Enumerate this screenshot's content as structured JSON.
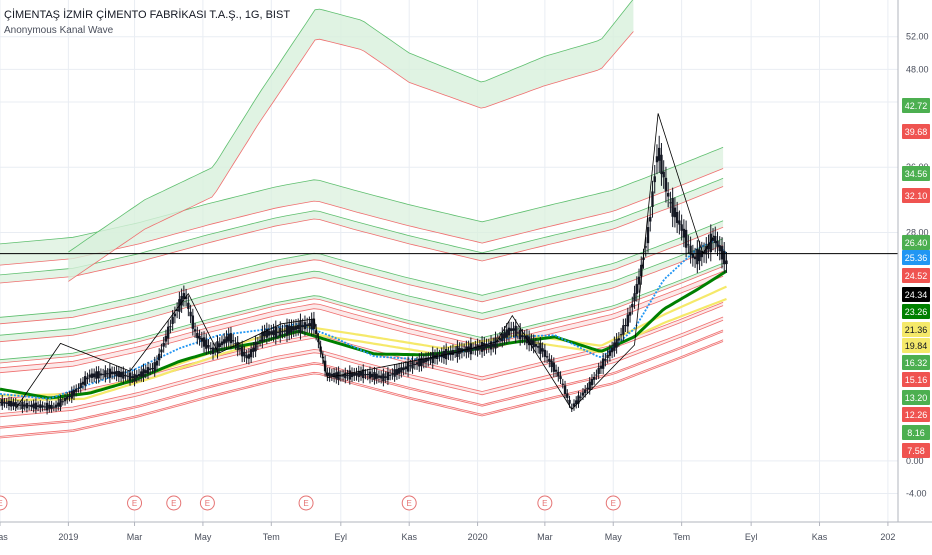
{
  "header": {
    "symbol_title": "ÇİMENTAŞ İZMİR ÇİMENTO FABRİKASI T.A.Ş., 1G, BIST",
    "indicator_title": "Anonymous Kanal Wave"
  },
  "colors": {
    "axis_text": "#4a4f5c",
    "grid": "#e9edf3",
    "axis_line": "#b2b5be",
    "price_line": "#000000",
    "band_green": "#5fbf6f",
    "band_red": "#ef6f6f",
    "band_green_fill": "#d8f0dc",
    "band_red_fill": "#fbe0e0",
    "ma_green": "#008000",
    "ma_yellow": "#f5e96a",
    "ma_blue": "#2196f3",
    "candle": "#131722",
    "earnings": "#e57373"
  },
  "chart_data": {
    "type": "line",
    "title": "ÇİMENTAŞ İZMİR ÇİMENTO FABRİKASI T.A.Ş., 1G, BIST",
    "indicator": "Anonymous Kanal Wave",
    "x_type": "date",
    "x_range": [
      "2018-11-01",
      "2021-01-10"
    ],
    "x_ticks": [
      {
        "date": "2018-11-01",
        "label": "Kas"
      },
      {
        "date": "2019-01-01",
        "label": "2019"
      },
      {
        "date": "2019-03-01",
        "label": "Mar"
      },
      {
        "date": "2019-05-01",
        "label": "May"
      },
      {
        "date": "2019-07-01",
        "label": "Tem"
      },
      {
        "date": "2019-09-01",
        "label": "Eyl"
      },
      {
        "date": "2019-11-01",
        "label": "Kas"
      },
      {
        "date": "2020-01-01",
        "label": "2020"
      },
      {
        "date": "2020-03-01",
        "label": "Mar"
      },
      {
        "date": "2020-05-01",
        "label": "May"
      },
      {
        "date": "2020-07-01",
        "label": "Tem"
      },
      {
        "date": "2020-09-01",
        "label": "Eyl"
      },
      {
        "date": "2020-11-01",
        "label": "Kas"
      },
      {
        "date": "2021-01-01",
        "label": "202"
      }
    ],
    "y_range": [
      -7.5,
      56.5
    ],
    "y_ticks": [
      52,
      48,
      44,
      36,
      28,
      0,
      -4
    ],
    "y_tick_labels": [
      "52.00",
      "48.00",
      "44.00",
      "36.00",
      "28.00",
      "0.00",
      "-4.00"
    ],
    "grid": true,
    "crosshair_price": 25.4,
    "price_labels": [
      {
        "value": "42.72",
        "bg": "#4caf50"
      },
      {
        "value": "39.68",
        "bg": "#ef5350"
      },
      {
        "value": "34.56",
        "bg": "#4caf50"
      },
      {
        "value": "32.10",
        "bg": "#ef5350"
      },
      {
        "value": "26.40",
        "bg": "#4caf50"
      },
      {
        "value": "25.36",
        "bg": "#2196f3"
      },
      {
        "value": "24.52",
        "bg": "#ef5350"
      },
      {
        "value": "24.34",
        "bg": "#000000"
      },
      {
        "value": "23.26",
        "bg": "#008000"
      },
      {
        "value": "21.36",
        "bg": "#f5e96a"
      },
      {
        "value": "19.84",
        "bg": "#f5e96a"
      },
      {
        "value": "16.32",
        "bg": "#4caf50"
      },
      {
        "value": "15.16",
        "bg": "#ef5350"
      },
      {
        "value": "13.20",
        "bg": "#4caf50"
      },
      {
        "value": "12.26",
        "bg": "#ef5350"
      },
      {
        "value": "8.16",
        "bg": "#4caf50"
      },
      {
        "value": "7.58",
        "bg": "#ef5350"
      }
    ],
    "earnings_marker_label": "E",
    "earnings_dates": [
      "2018-11-01",
      "2019-03-01",
      "2019-04-05",
      "2019-05-05",
      "2019-08-01",
      "2019-11-01",
      "2020-03-01",
      "2020-05-01"
    ],
    "series": [
      {
        "name": "",
        "role": "price",
        "x": [
          "2018-11-01",
          "2018-11-20",
          "2018-12-20",
          "2019-01-05",
          "2019-01-20",
          "2019-02-10",
          "2019-03-01",
          "2019-03-20",
          "2019-04-05",
          "2019-04-15",
          "2019-04-25",
          "2019-05-10",
          "2019-05-25",
          "2019-06-10",
          "2019-06-25",
          "2019-07-10",
          "2019-07-25",
          "2019-08-08",
          "2019-08-20",
          "2019-09-01",
          "2019-09-20",
          "2019-10-10",
          "2019-11-01",
          "2019-11-25",
          "2019-12-20",
          "2020-01-15",
          "2020-02-01",
          "2020-02-15",
          "2020-02-28",
          "2020-03-15",
          "2020-03-25",
          "2020-04-10",
          "2020-04-25",
          "2020-05-05",
          "2020-05-15",
          "2020-05-25",
          "2020-06-02",
          "2020-06-10",
          "2020-06-20",
          "2020-07-01",
          "2020-07-12",
          "2020-07-22",
          "2020-07-30",
          "2020-08-05",
          "2020-08-10"
        ],
        "y": [
          7.2,
          6.8,
          6.6,
          8.2,
          10.4,
          10.8,
          10.2,
          11.6,
          17.6,
          20.5,
          15.5,
          13.5,
          15.2,
          12.6,
          15.6,
          15.8,
          16.4,
          16.8,
          10.6,
          10.4,
          10.7,
          10.2,
          11.6,
          12.8,
          13.6,
          14.2,
          16.2,
          14.8,
          13.6,
          10.2,
          6.5,
          9.2,
          12.6,
          14.6,
          17.5,
          22.6,
          28.4,
          38.2,
          32.0,
          28.6,
          24.8,
          25.6,
          27.4,
          25.8,
          24.34
        ]
      },
      {
        "name": "",
        "role": "zigzag",
        "x": [
          "2018-11-15",
          "2018-12-25",
          "2019-02-25",
          "2019-04-18",
          "2019-05-15",
          "2019-07-10",
          "2019-08-08",
          "2019-08-20",
          "2019-12-10",
          "2020-01-18",
          "2020-02-01",
          "2020-03-25",
          "2020-05-20",
          "2020-06-10",
          "2020-07-20",
          "2020-07-30"
        ],
        "y": [
          6.4,
          14.4,
          11.0,
          20.5,
          13.2,
          16.8,
          17.4,
          10.2,
          13.2,
          14.6,
          17.8,
          6.3,
          14.2,
          42.6,
          25.4,
          27.6
        ]
      },
      {
        "name": "",
        "role": "ma_blue",
        "x": [
          "2018-11-01",
          "2018-12-15",
          "2019-01-20",
          "2019-03-01",
          "2019-04-10",
          "2019-05-15",
          "2019-06-20",
          "2019-07-25",
          "2019-08-25",
          "2019-10-01",
          "2019-11-15",
          "2019-12-25",
          "2020-02-01",
          "2020-03-10",
          "2020-04-20",
          "2020-05-20",
          "2020-06-15",
          "2020-07-15",
          "2020-07-30",
          "2020-08-10"
        ],
        "y": [
          8.2,
          7.6,
          9.4,
          11.2,
          13.8,
          15.4,
          16.0,
          16.8,
          15.2,
          12.8,
          12.4,
          13.6,
          15.2,
          15.4,
          12.6,
          16.2,
          22.2,
          26.0,
          27.0,
          25.36
        ]
      },
      {
        "name": "",
        "role": "ma_green",
        "x": [
          "2018-11-01",
          "2018-12-15",
          "2019-01-20",
          "2019-03-01",
          "2019-04-10",
          "2019-05-15",
          "2019-06-20",
          "2019-07-25",
          "2019-08-25",
          "2019-10-01",
          "2019-11-15",
          "2019-12-25",
          "2020-02-01",
          "2020-03-10",
          "2020-04-20",
          "2020-05-20",
          "2020-06-15",
          "2020-07-15",
          "2020-08-10"
        ],
        "y": [
          8.8,
          7.7,
          8.3,
          9.9,
          12.2,
          13.6,
          14.5,
          15.9,
          14.6,
          13.1,
          13.0,
          13.6,
          14.5,
          15.2,
          13.4,
          15.2,
          18.6,
          21.0,
          23.26
        ]
      },
      {
        "name": "",
        "role": "ma_yellow_upper",
        "x": [
          "2018-11-01",
          "2019-01-15",
          "2019-03-20",
          "2019-05-20",
          "2019-07-25",
          "2019-09-20",
          "2019-12-01",
          "2020-02-10",
          "2020-04-20",
          "2020-06-15",
          "2020-08-10"
        ],
        "y": [
          8.0,
          8.2,
          10.9,
          13.8,
          16.6,
          15.4,
          13.8,
          15.5,
          14.1,
          17.9,
          21.36
        ]
      },
      {
        "name": "",
        "role": "ma_yellow_lower",
        "x": [
          "2018-11-01",
          "2019-01-15",
          "2019-03-20",
          "2019-05-20",
          "2019-07-25",
          "2019-09-20",
          "2019-12-01",
          "2020-02-10",
          "2020-04-20",
          "2020-06-15",
          "2020-08-10"
        ],
        "y": [
          7.4,
          7.6,
          10.3,
          13.2,
          15.8,
          14.6,
          13.0,
          14.7,
          13.3,
          16.9,
          19.84
        ]
      },
      {
        "name": "",
        "role": "band_curve",
        "x": [
          "2018-11-01",
          "2019-01-05",
          "2019-03-05",
          "2019-05-05",
          "2019-07-05",
          "2019-08-10",
          "2019-09-15",
          "2019-11-01",
          "2020-01-05",
          "2020-03-01",
          "2020-05-01",
          "2020-07-01",
          "2020-08-10"
        ],
        "y": [
          0,
          0.8,
          2.6,
          4.9,
          7.0,
          7.9,
          6.5,
          4.8,
          2.7,
          4.6,
          6.6,
          9.8,
          12.0
        ]
      }
    ],
    "bands": [
      {
        "top": 26.6,
        "bottom": 24.0,
        "color": "green"
      },
      {
        "top": 22.8,
        "bottom": 21.8,
        "color": "green"
      },
      {
        "top": 17.6,
        "bottom": 16.8,
        "color": "green"
      },
      {
        "top": 15.4,
        "bottom": 14.6,
        "color": "green"
      },
      {
        "top": 12.4,
        "bottom": 12.0,
        "color": "green"
      },
      {
        "top": 11.4,
        "bottom": 10.8,
        "color": "red"
      },
      {
        "top": 7.6,
        "bottom": 7.2,
        "color": "red"
      },
      {
        "top": 5.8,
        "bottom": 5.4,
        "color": "red"
      },
      {
        "top": 4.2,
        "bottom": 4.0,
        "color": "red"
      },
      {
        "top": 3.0,
        "bottom": 2.8,
        "color": "red"
      }
    ],
    "big_band": {
      "name": "",
      "x": [
        "2019-01-01",
        "2019-03-10",
        "2019-05-10",
        "2019-06-20",
        "2019-08-10",
        "2019-09-20",
        "2019-11-01",
        "2020-01-05",
        "2020-03-01",
        "2020-04-20",
        "2020-05-20"
      ],
      "top": [
        25.6,
        32.0,
        36.0,
        45.0,
        55.5,
        54.0,
        50.0,
        46.4,
        49.6,
        51.6,
        56.8
      ],
      "bottom": [
        22.0,
        28.4,
        32.4,
        41.4,
        51.8,
        50.4,
        46.4,
        43.2,
        46.0,
        48.0,
        52.8
      ]
    }
  }
}
